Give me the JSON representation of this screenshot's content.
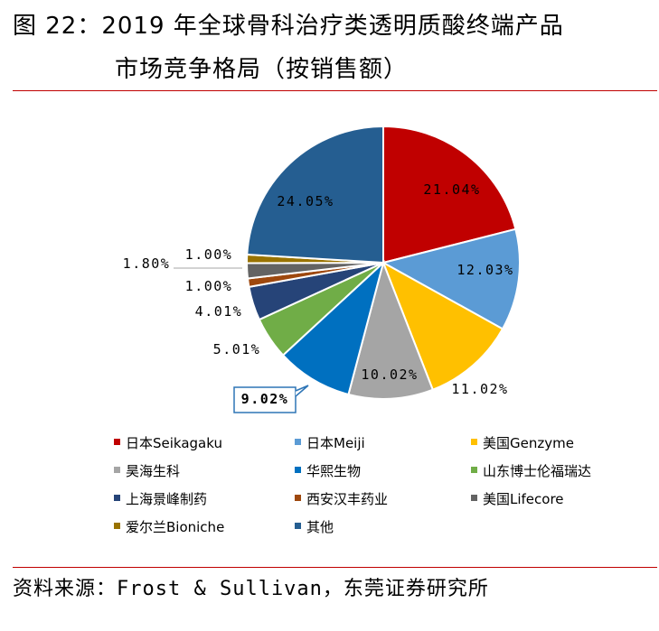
{
  "title": {
    "line1": "图 22：2019 年全球骨科治疗类透明质酸终端产品",
    "line2": "市场竞争格局（按销售额）"
  },
  "source": "资料来源：Frost & Sullivan，东莞证券研究所",
  "chart_data": {
    "type": "pie",
    "start_angle_deg": 0,
    "direction": "clockwise",
    "legend_position": "bottom",
    "slices": [
      {
        "label": "日本Seikagaku",
        "value": 21.04,
        "display": "21.04%",
        "color": "#c00000"
      },
      {
        "label": "日本Meiji",
        "value": 12.03,
        "display": "12.03%",
        "color": "#5b9bd5"
      },
      {
        "label": "美国Genzyme",
        "value": 11.02,
        "display": "11.02%",
        "color": "#ffc000"
      },
      {
        "label": "昊海生科",
        "value": 10.02,
        "display": "10.02%",
        "color": "#a5a5a5"
      },
      {
        "label": "华熙生物",
        "value": 9.02,
        "display": "9.02%",
        "color": "#0070c0",
        "highlight": true
      },
      {
        "label": "山东博士伦福瑞达",
        "value": 5.01,
        "display": "5.01%",
        "color": "#70ad47"
      },
      {
        "label": "上海景峰制药",
        "value": 4.01,
        "display": "4.01%",
        "color": "#264478"
      },
      {
        "label": "西安汉丰药业",
        "value": 1.0,
        "display": "1.00%",
        "color": "#9e480e"
      },
      {
        "label": "美国Lifecore",
        "value": 1.8,
        "display": "1.80%",
        "color": "#636363"
      },
      {
        "label": "爱尔兰Bioniche",
        "value": 1.0,
        "display": "1.00%",
        "color": "#997300"
      },
      {
        "label": "其他",
        "value": 24.05,
        "display": "24.05%",
        "color": "#255e91"
      }
    ]
  }
}
